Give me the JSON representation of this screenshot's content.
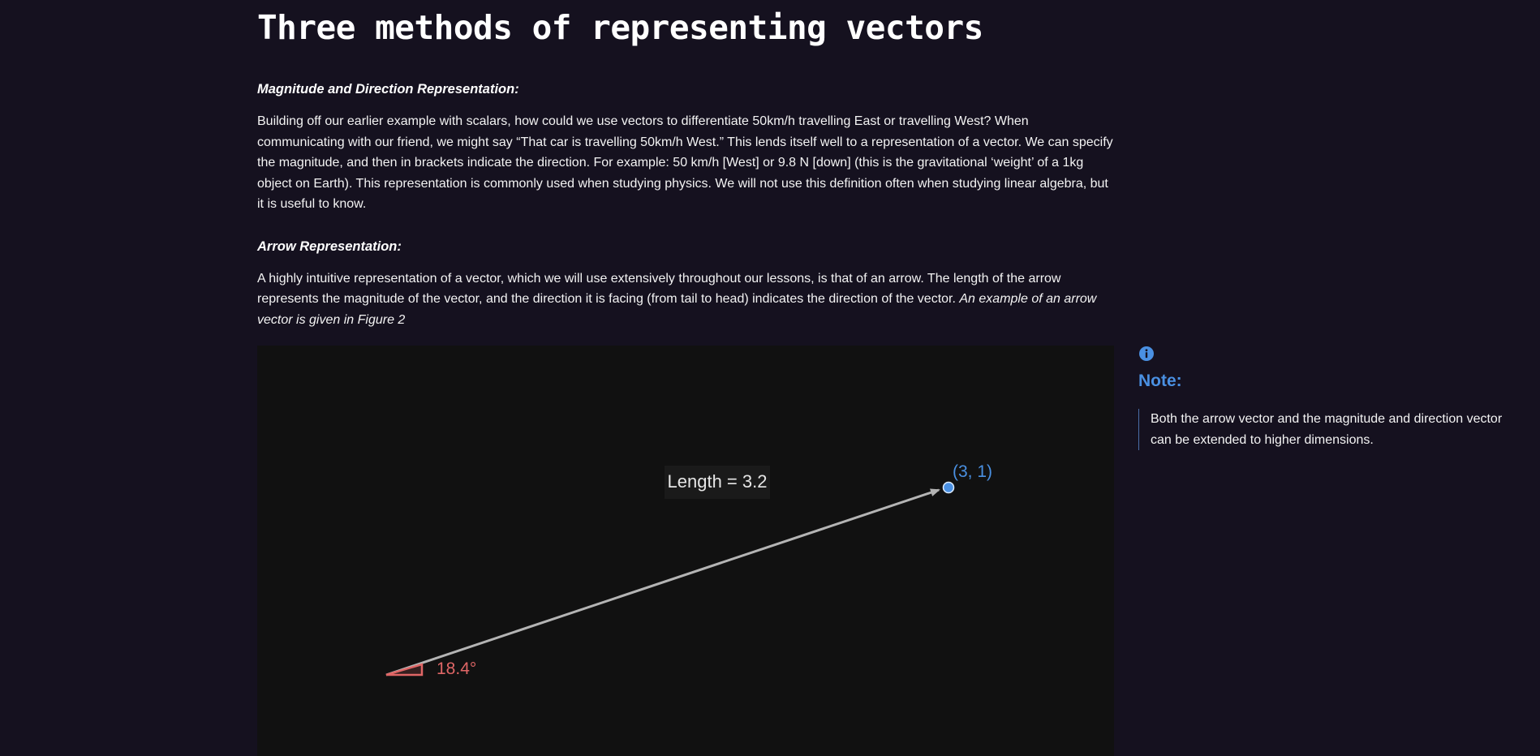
{
  "page": {
    "title": "Three methods of representing vectors"
  },
  "sections": {
    "magnitude": {
      "heading": "Magnitude and Direction Representation:",
      "body": "Building off our earlier example with scalars, how could we use vectors to differentiate 50km/h travelling East or travelling West? When communicating with our friend, we might say “That car is travelling 50km/h West.” This lends itself well to a representation of a vector. We can specify the magnitude, and then in brackets indicate the direction. For example: 50 km/h [West] or 9.8 N [down] (this is the gravitational ‘weight’ of a 1kg object on Earth). This representation is commonly used when studying physics. We will not use this definition often when studying linear algebra, but it is useful to know."
    },
    "arrow": {
      "heading": "Arrow Representation:",
      "body": "A highly intuitive representation of a vector, which we will use extensively throughout our lessons, is that of an arrow. The length of the arrow represents the magnitude of the vector, and the direction it is facing (from tail to head) indicates the direction of the vector. ",
      "body_italic": "An example of an arrow vector is given in Figure 2"
    }
  },
  "figure": {
    "length_label": "Length = 3.2",
    "point_label": "(3, 1)",
    "angle_label": "18.4°",
    "colors": {
      "arrow": "#b4b4b4",
      "point": "#4a90e2",
      "angle": "#e06666",
      "label_bg": "#1a1a1a"
    }
  },
  "note": {
    "icon": "info-icon",
    "title": "Note:",
    "body": "Both the arrow vector and the magnitude and direction vector can be extended to higher dimensions."
  }
}
